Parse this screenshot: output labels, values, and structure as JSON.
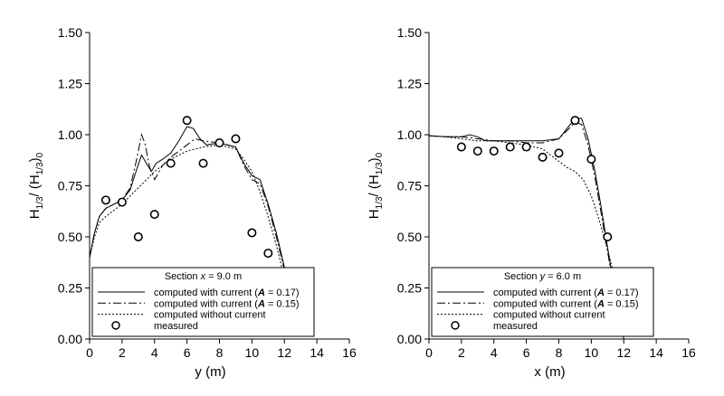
{
  "chart_data": [
    {
      "type": "line",
      "title": "",
      "xlabel": "y (m)",
      "ylabel": "H1/3 / (H1/3)0",
      "ylabel_parts": {
        "H": "H",
        "sub1": "1/3",
        "slash": "/ (",
        "sub2": "1/3",
        "close": ")",
        "sub3": "0"
      },
      "xlim": [
        0,
        16
      ],
      "ylim": [
        0,
        1.5
      ],
      "x_ticks": [
        0,
        2,
        4,
        6,
        8,
        10,
        12,
        14,
        16
      ],
      "x_tick_labels": [
        "0",
        "2",
        "4",
        "6",
        "8",
        "10",
        "12",
        "14",
        "16"
      ],
      "y_ticks": [
        0,
        0.25,
        0.5,
        0.75,
        1.0,
        1.25,
        1.5
      ],
      "y_tick_labels": [
        "0.00",
        "0.25",
        "0.50",
        "0.75",
        "1.00",
        "1.25",
        "1.50"
      ],
      "grid": false,
      "legend": {
        "placement": "bottom",
        "title_prefix": "Section ",
        "title_var": "x",
        "title_suffix": " = 9.0 m",
        "entries": [
          {
            "series": "computed with current (",
            "bold": "A",
            "tail": " = 0.17)",
            "style": "solid"
          },
          {
            "series": "computed with current (",
            "bold": "A",
            "tail": " = 0.15)",
            "style": "dashdot"
          },
          {
            "series": "computed without current",
            "bold": "",
            "tail": "",
            "style": "dotted"
          },
          {
            "series": "measured",
            "bold": "",
            "tail": "",
            "style": "marker"
          }
        ]
      },
      "series": [
        {
          "name": "computed with current (A = 0.17)",
          "style": "solid",
          "x": [
            0,
            0.3,
            0.6,
            1.0,
            1.5,
            2.0,
            2.5,
            2.9,
            3.2,
            3.5,
            3.8,
            4.1,
            4.5,
            5.0,
            5.5,
            6.0,
            6.4,
            6.8,
            7.2,
            8.0,
            9.0,
            9.5,
            10.0,
            10.5,
            11.0,
            11.5,
            12.0,
            12.4
          ],
          "y": [
            0.4,
            0.52,
            0.6,
            0.64,
            0.66,
            0.68,
            0.73,
            0.83,
            0.9,
            0.86,
            0.82,
            0.86,
            0.88,
            0.91,
            0.97,
            1.04,
            1.03,
            0.98,
            0.95,
            0.96,
            0.94,
            0.86,
            0.8,
            0.78,
            0.66,
            0.52,
            0.35,
            0.18
          ]
        },
        {
          "name": "computed with current (A = 0.15)",
          "style": "dashdot",
          "x": [
            0,
            0.3,
            0.6,
            1.0,
            1.5,
            2.0,
            2.5,
            2.9,
            3.2,
            3.4,
            3.7,
            4.0,
            4.5,
            5.0,
            5.5,
            6.0,
            6.5,
            7.0,
            8.0,
            9.0,
            9.5,
            10.0,
            10.5,
            11.0,
            11.5,
            12.0,
            12.4
          ],
          "y": [
            0.4,
            0.52,
            0.6,
            0.64,
            0.66,
            0.68,
            0.74,
            0.88,
            1.0,
            0.96,
            0.84,
            0.78,
            0.85,
            0.89,
            0.92,
            0.95,
            0.98,
            0.97,
            0.96,
            0.94,
            0.85,
            0.78,
            0.76,
            0.65,
            0.5,
            0.34,
            0.18
          ]
        },
        {
          "name": "computed without current",
          "style": "dotted",
          "x": [
            0,
            0.3,
            0.6,
            1.0,
            1.5,
            2.0,
            3.0,
            4.0,
            5.0,
            6.0,
            7.0,
            8.0,
            9.0,
            9.5,
            10.0,
            10.5,
            11.0,
            11.5,
            12.0
          ],
          "y": [
            0.4,
            0.5,
            0.57,
            0.6,
            0.63,
            0.66,
            0.74,
            0.82,
            0.88,
            0.92,
            0.94,
            0.95,
            0.93,
            0.88,
            0.82,
            0.72,
            0.6,
            0.46,
            0.3
          ]
        },
        {
          "name": "measured",
          "style": "marker",
          "x": [
            1,
            2,
            3,
            4,
            5,
            6,
            7,
            8,
            9,
            10,
            11
          ],
          "y": [
            0.68,
            0.67,
            0.5,
            0.61,
            0.86,
            1.07,
            0.86,
            0.96,
            0.98,
            0.52,
            0.42
          ]
        }
      ]
    },
    {
      "type": "line",
      "title": "",
      "xlabel": "x (m)",
      "ylabel": "H1/3 / (H1/3)0",
      "ylabel_parts": {
        "H": "H",
        "sub1": "1/3",
        "slash": "/ (",
        "sub2": "1/3",
        "close": ")",
        "sub3": "0"
      },
      "xlim": [
        0,
        16
      ],
      "ylim": [
        0,
        1.5
      ],
      "x_ticks": [
        0,
        2,
        4,
        6,
        8,
        10,
        12,
        14,
        16
      ],
      "x_tick_labels": [
        "0",
        "2",
        "4",
        "6",
        "8",
        "10",
        "12",
        "14",
        "16"
      ],
      "y_ticks": [
        0,
        0.25,
        0.5,
        0.75,
        1.0,
        1.25,
        1.5
      ],
      "y_tick_labels": [
        "0.00",
        "0.25",
        "0.50",
        "0.75",
        "1.00",
        "1.25",
        "1.50"
      ],
      "grid": false,
      "legend": {
        "placement": "bottom",
        "title_prefix": "Section ",
        "title_var": "y",
        "title_suffix": " = 6.0 m",
        "entries": [
          {
            "series": "computed with current (",
            "bold": "A",
            "tail": " = 0.17)",
            "style": "solid"
          },
          {
            "series": "computed with current (",
            "bold": "A",
            "tail": " = 0.15)",
            "style": "dashdot"
          },
          {
            "series": "computed without current",
            "bold": "",
            "tail": "",
            "style": "dotted"
          },
          {
            "series": "measured",
            "bold": "",
            "tail": "",
            "style": "marker"
          }
        ]
      },
      "series": [
        {
          "name": "computed with current (A = 0.17)",
          "style": "solid",
          "x": [
            0,
            1.0,
            2.0,
            2.5,
            3.0,
            3.5,
            4.0,
            5.0,
            6.0,
            7.0,
            8.0,
            8.5,
            9.0,
            9.4,
            9.8,
            10.2,
            10.6,
            11.0,
            11.4,
            11.8,
            12.0
          ],
          "y": [
            0.995,
            0.99,
            0.99,
            1.0,
            0.99,
            0.97,
            0.97,
            0.97,
            0.97,
            0.97,
            0.98,
            1.03,
            1.08,
            1.08,
            0.98,
            0.83,
            0.65,
            0.45,
            0.25,
            0.08,
            0.0
          ]
        },
        {
          "name": "computed with current (A = 0.15)",
          "style": "dashdot",
          "x": [
            0,
            1.0,
            2.0,
            3.0,
            4.0,
            5.0,
            6.0,
            7.0,
            8.0,
            8.5,
            9.0,
            9.4,
            9.8,
            10.2,
            10.6,
            11.0,
            11.4,
            11.8
          ],
          "y": [
            0.995,
            0.99,
            0.99,
            0.98,
            0.97,
            0.97,
            0.96,
            0.96,
            0.98,
            1.02,
            1.06,
            1.05,
            0.95,
            0.8,
            0.62,
            0.43,
            0.24,
            0.07
          ]
        },
        {
          "name": "computed without current",
          "style": "dotted",
          "x": [
            0,
            1.0,
            2.0,
            3.0,
            4.0,
            5.0,
            6.0,
            7.0,
            7.5,
            8.0,
            8.5,
            9.0,
            9.5,
            10.0,
            10.5,
            11.0,
            11.5,
            12.0
          ],
          "y": [
            0.995,
            0.99,
            0.98,
            0.97,
            0.97,
            0.96,
            0.95,
            0.93,
            0.9,
            0.87,
            0.84,
            0.82,
            0.78,
            0.7,
            0.58,
            0.44,
            0.28,
            0.12
          ]
        },
        {
          "name": "measured",
          "style": "marker",
          "x": [
            2,
            3,
            4,
            5,
            6,
            7,
            8,
            9,
            10,
            11
          ],
          "y": [
            0.94,
            0.92,
            0.92,
            0.94,
            0.94,
            0.89,
            0.91,
            1.07,
            0.88,
            0.5
          ]
        }
      ]
    }
  ]
}
